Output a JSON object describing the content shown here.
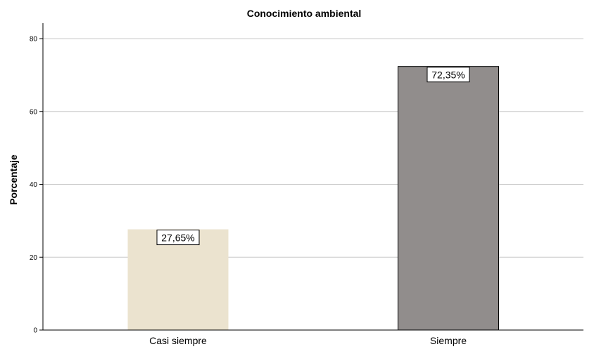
{
  "chart_data": {
    "type": "bar",
    "title": "Conocimiento ambiental",
    "xlabel": "",
    "ylabel": "Porcentaje",
    "categories": [
      "Casi siempre",
      "Siempre"
    ],
    "values": [
      27.65,
      72.35
    ],
    "data_labels": [
      "27,65%",
      "72,35%"
    ],
    "bar_colors": [
      "#ebe3cf",
      "#918d8c"
    ],
    "ylim": [
      0,
      80
    ],
    "yticks": [
      "0",
      "20",
      "40",
      "60",
      "80"
    ],
    "grid": true,
    "legend": "none"
  }
}
